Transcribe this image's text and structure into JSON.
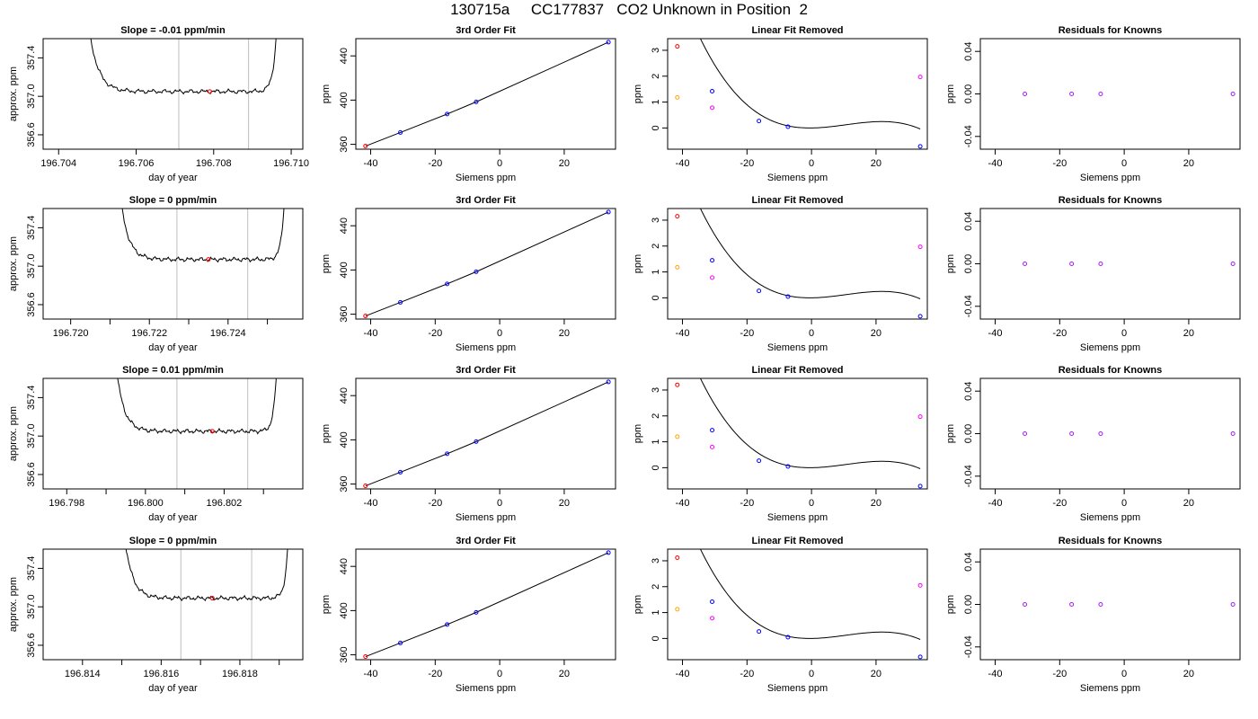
{
  "page": {
    "title": "130715a     CC177837   CO2 Unknown in Position  2"
  },
  "colors": {
    "trace": "#000000",
    "marker_red": "#ff0000",
    "marker_blue": "#0000ff",
    "marker_orange": "#ffa500",
    "marker_magenta": "#ff00ff",
    "marker_purple": "#a020f0",
    "gridline": "#bebebe"
  },
  "chart_data": [
    {
      "row": 1,
      "panel": "trace",
      "type": "line",
      "title": "Slope =  -0.01  ppm/min",
      "xlabel": "day of year",
      "ylabel": "approx. ppm",
      "xlim": [
        196.7036,
        196.7103
      ],
      "ylim": [
        356.45,
        357.6
      ],
      "xticks": [
        196.704,
        196.706,
        196.708,
        196.71
      ],
      "xtick_labels": [
        "196.704",
        "196.706",
        "196.708",
        "196.710"
      ],
      "yticks": [
        356.6,
        357.0,
        357.4
      ],
      "ytick_labels": [
        "356.6",
        "357.0",
        "357.4"
      ],
      "window": [
        196.7071,
        196.7089
      ],
      "x_start": 196.7046,
      "x_end": 196.7097,
      "level": 357.05,
      "marker": {
        "x": 196.7079,
        "y": 357.05
      }
    },
    {
      "row": 1,
      "panel": "fit",
      "type": "scatter",
      "title": "3rd Order Fit",
      "xlabel": "Siemens ppm",
      "ylabel": "ppm",
      "xlim": [
        -44.6,
        35.9
      ],
      "ylim": [
        355.6,
        455.6
      ],
      "xticks": [
        -40,
        -20,
        0,
        20
      ],
      "xtick_labels": [
        "-40",
        "-20",
        "0",
        "20"
      ],
      "yticks": [
        360,
        400,
        440
      ],
      "ytick_labels": [
        "360",
        "400",
        "440"
      ],
      "points": [
        {
          "x": -41.6,
          "y": 358.4,
          "color": "marker_red"
        },
        {
          "x": -30.8,
          "y": 370.7,
          "color": "marker_blue"
        },
        {
          "x": -16.3,
          "y": 387.4,
          "color": "marker_blue"
        },
        {
          "x": -7.3,
          "y": 398.4,
          "color": "marker_blue"
        },
        {
          "x": 33.7,
          "y": 452.4,
          "color": "marker_blue"
        }
      ]
    },
    {
      "row": 1,
      "panel": "linear_removed",
      "type": "scatter",
      "title": "Linear Fit Removed",
      "xlabel": "Siemens ppm",
      "ylabel": "ppm",
      "xlim": [
        -44.6,
        35.9
      ],
      "ylim": [
        -0.82,
        3.45
      ],
      "xticks": [
        -40,
        -20,
        0,
        20
      ],
      "xtick_labels": [
        "-40",
        "-20",
        "0",
        "20"
      ],
      "yticks": [
        0,
        1,
        2,
        3
      ],
      "ytick_labels": [
        "0",
        "1",
        "2",
        "3"
      ],
      "curve": {
        "a": -4.45e-05,
        "b": 0.00142,
        "c": 0.00151
      },
      "points": [
        {
          "x": -41.6,
          "y": 3.15,
          "color": "marker_red"
        },
        {
          "x": -30.8,
          "y": 1.42,
          "color": "marker_blue"
        },
        {
          "x": -16.3,
          "y": 0.27,
          "color": "marker_blue"
        },
        {
          "x": -7.3,
          "y": 0.05,
          "color": "marker_blue"
        },
        {
          "x": 33.7,
          "y": -0.71,
          "color": "marker_blue"
        },
        {
          "x": -41.6,
          "y": 1.18,
          "color": "marker_orange"
        },
        {
          "x": -30.8,
          "y": 0.78,
          "color": "marker_magenta"
        },
        {
          "x": 33.7,
          "y": 1.97,
          "color": "marker_magenta"
        }
      ]
    },
    {
      "row": 1,
      "panel": "residuals",
      "type": "scatter",
      "title": "Residuals for Knowns",
      "xlabel": "Siemens ppm",
      "ylabel": "ppm",
      "xlim": [
        -44.6,
        35.9
      ],
      "ylim": [
        -0.052,
        0.052
      ],
      "xticks": [
        -40,
        -20,
        0,
        20
      ],
      "xtick_labels": [
        "-40",
        "-20",
        "0",
        "20"
      ],
      "yticks": [
        -0.04,
        0.0,
        0.04
      ],
      "ytick_labels": [
        "-0.04",
        "0.00",
        "0.04"
      ],
      "points": [
        {
          "x": -30.8,
          "y": 0,
          "color": "marker_purple"
        },
        {
          "x": -16.3,
          "y": 0,
          "color": "marker_purple"
        },
        {
          "x": -7.3,
          "y": 0,
          "color": "marker_purple"
        },
        {
          "x": 33.7,
          "y": 0,
          "color": "marker_purple"
        }
      ]
    },
    {
      "row": 2,
      "panel": "trace",
      "type": "line",
      "title": "Slope =  0  ppm/min",
      "xlabel": "day of year",
      "ylabel": "approx. ppm",
      "xlim": [
        196.7193,
        196.7259
      ],
      "ylim": [
        356.45,
        357.6
      ],
      "xticks": [
        196.72,
        196.721,
        196.722,
        196.723,
        196.724,
        196.725
      ],
      "xtick_labels": [
        "196.720",
        "",
        "196.722",
        "",
        "196.724",
        ""
      ],
      "yticks": [
        356.6,
        357.0,
        357.4
      ],
      "ytick_labels": [
        "356.6",
        "357.0",
        "357.4"
      ],
      "window": [
        196.7227,
        196.7245
      ],
      "x_start": 196.7211,
      "x_end": 196.7255,
      "level": 357.07,
      "marker": {
        "x": 196.7235,
        "y": 357.07
      }
    },
    {
      "row": 2,
      "panel": "fit",
      "type": "scatter",
      "title": "3rd Order Fit",
      "xlabel": "Siemens ppm",
      "ylabel": "ppm",
      "xlim": [
        -44.6,
        35.9
      ],
      "ylim": [
        355.6,
        455.6
      ],
      "xticks": [
        -40,
        -20,
        0,
        20
      ],
      "xtick_labels": [
        "-40",
        "-20",
        "0",
        "20"
      ],
      "yticks": [
        360,
        400,
        440
      ],
      "ytick_labels": [
        "360",
        "400",
        "440"
      ],
      "points": [
        {
          "x": -41.6,
          "y": 358.4,
          "color": "marker_red"
        },
        {
          "x": -30.8,
          "y": 370.7,
          "color": "marker_blue"
        },
        {
          "x": -16.3,
          "y": 387.4,
          "color": "marker_blue"
        },
        {
          "x": -7.3,
          "y": 398.4,
          "color": "marker_blue"
        },
        {
          "x": 33.7,
          "y": 452.4,
          "color": "marker_blue"
        }
      ]
    },
    {
      "row": 2,
      "panel": "linear_removed",
      "type": "scatter",
      "title": "Linear Fit Removed",
      "xlabel": "Siemens ppm",
      "ylabel": "ppm",
      "xlim": [
        -44.6,
        35.9
      ],
      "ylim": [
        -0.82,
        3.45
      ],
      "xticks": [
        -40,
        -20,
        0,
        20
      ],
      "xtick_labels": [
        "-40",
        "-20",
        "0",
        "20"
      ],
      "yticks": [
        0,
        1,
        2,
        3
      ],
      "ytick_labels": [
        "0",
        "1",
        "2",
        "3"
      ],
      "curve": {
        "a": -4.45e-05,
        "b": 0.00142,
        "c": 0.00151
      },
      "points": [
        {
          "x": -41.6,
          "y": 3.15,
          "color": "marker_red"
        },
        {
          "x": -30.8,
          "y": 1.45,
          "color": "marker_blue"
        },
        {
          "x": -16.3,
          "y": 0.27,
          "color": "marker_blue"
        },
        {
          "x": -7.3,
          "y": 0.05,
          "color": "marker_blue"
        },
        {
          "x": 33.7,
          "y": -0.71,
          "color": "marker_blue"
        },
        {
          "x": -41.6,
          "y": 1.18,
          "color": "marker_orange"
        },
        {
          "x": -30.8,
          "y": 0.78,
          "color": "marker_magenta"
        },
        {
          "x": 33.7,
          "y": 1.97,
          "color": "marker_magenta"
        }
      ]
    },
    {
      "row": 2,
      "panel": "residuals",
      "type": "scatter",
      "title": "Residuals for Knowns",
      "xlabel": "Siemens ppm",
      "ylabel": "ppm",
      "xlim": [
        -44.6,
        35.9
      ],
      "ylim": [
        -0.052,
        0.052
      ],
      "xticks": [
        -40,
        -20,
        0,
        20
      ],
      "xtick_labels": [
        "-40",
        "-20",
        "0",
        "20"
      ],
      "yticks": [
        -0.04,
        0.0,
        0.04
      ],
      "ytick_labels": [
        "-0.04",
        "0.00",
        "0.04"
      ],
      "points": [
        {
          "x": -30.8,
          "y": 0,
          "color": "marker_purple"
        },
        {
          "x": -16.3,
          "y": 0,
          "color": "marker_purple"
        },
        {
          "x": -7.3,
          "y": 0,
          "color": "marker_purple"
        },
        {
          "x": 33.7,
          "y": 0,
          "color": "marker_purple"
        }
      ]
    },
    {
      "row": 3,
      "panel": "trace",
      "type": "line",
      "title": "Slope =  0.01  ppm/min",
      "xlabel": "day of year",
      "ylabel": "approx. ppm",
      "xlim": [
        196.7974,
        196.804
      ],
      "ylim": [
        356.45,
        357.6
      ],
      "xticks": [
        196.798,
        196.799,
        196.8,
        196.801,
        196.802,
        196.803
      ],
      "xtick_labels": [
        "196.798",
        "",
        "196.800",
        "",
        "196.802",
        ""
      ],
      "yticks": [
        356.6,
        357.0,
        357.4
      ],
      "ytick_labels": [
        "356.6",
        "357.0",
        "357.4"
      ],
      "window": [
        196.8008,
        196.8026
      ],
      "x_start": 196.7991,
      "x_end": 196.8034,
      "level": 357.05,
      "marker": {
        "x": 196.8017,
        "y": 357.05
      }
    },
    {
      "row": 3,
      "panel": "fit",
      "type": "scatter",
      "title": "3rd Order Fit",
      "xlabel": "Siemens ppm",
      "ylabel": "ppm",
      "xlim": [
        -44.6,
        35.9
      ],
      "ylim": [
        355.6,
        455.6
      ],
      "xticks": [
        -40,
        -20,
        0,
        20
      ],
      "xtick_labels": [
        "-40",
        "-20",
        "0",
        "20"
      ],
      "yticks": [
        360,
        400,
        440
      ],
      "ytick_labels": [
        "360",
        "400",
        "440"
      ],
      "points": [
        {
          "x": -41.6,
          "y": 358.4,
          "color": "marker_red"
        },
        {
          "x": -30.8,
          "y": 370.7,
          "color": "marker_blue"
        },
        {
          "x": -16.3,
          "y": 387.4,
          "color": "marker_blue"
        },
        {
          "x": -7.3,
          "y": 398.4,
          "color": "marker_blue"
        },
        {
          "x": 33.7,
          "y": 452.4,
          "color": "marker_blue"
        }
      ]
    },
    {
      "row": 3,
      "panel": "linear_removed",
      "type": "scatter",
      "title": "Linear Fit Removed",
      "xlabel": "Siemens ppm",
      "ylabel": "ppm",
      "xlim": [
        -44.6,
        35.9
      ],
      "ylim": [
        -0.82,
        3.45
      ],
      "xticks": [
        -40,
        -20,
        0,
        20
      ],
      "xtick_labels": [
        "-40",
        "-20",
        "0",
        "20"
      ],
      "yticks": [
        0,
        1,
        2,
        3
      ],
      "ytick_labels": [
        "0",
        "1",
        "2",
        "3"
      ],
      "curve": {
        "a": -4.45e-05,
        "b": 0.00142,
        "c": 0.00151
      },
      "points": [
        {
          "x": -41.6,
          "y": 3.2,
          "color": "marker_red"
        },
        {
          "x": -30.8,
          "y": 1.45,
          "color": "marker_blue"
        },
        {
          "x": -16.3,
          "y": 0.27,
          "color": "marker_blue"
        },
        {
          "x": -7.3,
          "y": 0.05,
          "color": "marker_blue"
        },
        {
          "x": 33.7,
          "y": -0.71,
          "color": "marker_blue"
        },
        {
          "x": -41.6,
          "y": 1.2,
          "color": "marker_orange"
        },
        {
          "x": -30.8,
          "y": 0.8,
          "color": "marker_magenta"
        },
        {
          "x": 33.7,
          "y": 1.97,
          "color": "marker_magenta"
        }
      ]
    },
    {
      "row": 3,
      "panel": "residuals",
      "type": "scatter",
      "title": "Residuals for Knowns",
      "xlabel": "Siemens ppm",
      "ylabel": "ppm",
      "xlim": [
        -44.6,
        35.9
      ],
      "ylim": [
        -0.052,
        0.052
      ],
      "xticks": [
        -40,
        -20,
        0,
        20
      ],
      "xtick_labels": [
        "-40",
        "-20",
        "0",
        "20"
      ],
      "yticks": [
        -0.04,
        0.0,
        0.04
      ],
      "ytick_labels": [
        "-0.04",
        "0.00",
        "0.04"
      ],
      "points": [
        {
          "x": -30.8,
          "y": 0,
          "color": "marker_purple"
        },
        {
          "x": -16.3,
          "y": 0,
          "color": "marker_purple"
        },
        {
          "x": -7.3,
          "y": 0,
          "color": "marker_purple"
        },
        {
          "x": 33.7,
          "y": 0,
          "color": "marker_purple"
        }
      ]
    },
    {
      "row": 4,
      "panel": "trace",
      "type": "line",
      "title": "Slope =  0  ppm/min",
      "xlabel": "day of year",
      "ylabel": "approx. ppm",
      "xlim": [
        196.813,
        196.8196
      ],
      "ylim": [
        356.45,
        357.6
      ],
      "xticks": [
        196.814,
        196.815,
        196.816,
        196.817,
        196.818,
        196.819
      ],
      "xtick_labels": [
        "196.814",
        "",
        "196.816",
        "",
        "196.818",
        ""
      ],
      "yticks": [
        356.6,
        357.0,
        357.4
      ],
      "ytick_labels": [
        "356.6",
        "357.0",
        "357.4"
      ],
      "window": [
        196.8165,
        196.8183
      ],
      "x_start": 196.8149,
      "x_end": 196.8193,
      "level": 357.09,
      "marker": {
        "x": 196.8173,
        "y": 357.09
      }
    },
    {
      "row": 4,
      "panel": "fit",
      "type": "scatter",
      "title": "3rd Order Fit",
      "xlabel": "Siemens ppm",
      "ylabel": "ppm",
      "xlim": [
        -44.6,
        35.9
      ],
      "ylim": [
        355.6,
        455.6
      ],
      "xticks": [
        -40,
        -20,
        0,
        20
      ],
      "xtick_labels": [
        "-40",
        "-20",
        "0",
        "20"
      ],
      "yticks": [
        360,
        400,
        440
      ],
      "ytick_labels": [
        "360",
        "400",
        "440"
      ],
      "points": [
        {
          "x": -41.6,
          "y": 358.4,
          "color": "marker_red"
        },
        {
          "x": -30.8,
          "y": 370.7,
          "color": "marker_blue"
        },
        {
          "x": -16.3,
          "y": 387.4,
          "color": "marker_blue"
        },
        {
          "x": -7.3,
          "y": 398.4,
          "color": "marker_blue"
        },
        {
          "x": 33.7,
          "y": 452.4,
          "color": "marker_blue"
        }
      ]
    },
    {
      "row": 4,
      "panel": "linear_removed",
      "type": "scatter",
      "title": "Linear Fit Removed",
      "xlabel": "Siemens ppm",
      "ylabel": "ppm",
      "xlim": [
        -44.6,
        35.9
      ],
      "ylim": [
        -0.82,
        3.45
      ],
      "xticks": [
        -40,
        -20,
        0,
        20
      ],
      "xtick_labels": [
        "-40",
        "-20",
        "0",
        "20"
      ],
      "yticks": [
        0,
        1,
        2,
        3
      ],
      "ytick_labels": [
        "0",
        "1",
        "2",
        "3"
      ],
      "curve": {
        "a": -4.45e-05,
        "b": 0.00142,
        "c": 0.00151
      },
      "points": [
        {
          "x": -41.6,
          "y": 3.12,
          "color": "marker_red"
        },
        {
          "x": -30.8,
          "y": 1.42,
          "color": "marker_blue"
        },
        {
          "x": -16.3,
          "y": 0.27,
          "color": "marker_blue"
        },
        {
          "x": -7.3,
          "y": 0.05,
          "color": "marker_blue"
        },
        {
          "x": 33.7,
          "y": -0.71,
          "color": "marker_blue"
        },
        {
          "x": -41.6,
          "y": 1.13,
          "color": "marker_orange"
        },
        {
          "x": -30.8,
          "y": 0.78,
          "color": "marker_magenta"
        },
        {
          "x": 33.7,
          "y": 2.05,
          "color": "marker_magenta"
        }
      ]
    },
    {
      "row": 4,
      "panel": "residuals",
      "type": "scatter",
      "title": "Residuals for Knowns",
      "xlabel": "Siemens ppm",
      "ylabel": "ppm",
      "xlim": [
        -44.6,
        35.9
      ],
      "ylim": [
        -0.052,
        0.052
      ],
      "xticks": [
        -40,
        -20,
        0,
        20
      ],
      "xtick_labels": [
        "-40",
        "-20",
        "0",
        "20"
      ],
      "yticks": [
        -0.04,
        0.0,
        0.04
      ],
      "ytick_labels": [
        "-0.04",
        "0.00",
        "0.04"
      ],
      "points": [
        {
          "x": -30.8,
          "y": 0,
          "color": "marker_purple"
        },
        {
          "x": -16.3,
          "y": 0,
          "color": "marker_purple"
        },
        {
          "x": -7.3,
          "y": 0,
          "color": "marker_purple"
        },
        {
          "x": 33.7,
          "y": 0,
          "color": "marker_purple"
        }
      ]
    }
  ]
}
